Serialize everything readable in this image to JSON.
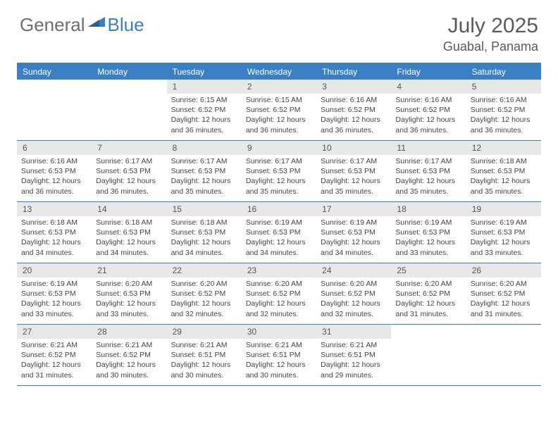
{
  "logo": {
    "part1": "General",
    "part2": "Blue"
  },
  "title": "July 2025",
  "location": "Guabal, Panama",
  "colors": {
    "accent": "#3a7fc4",
    "header_text": "#6e6e6e",
    "daynum_bg": "#e8e8e8",
    "body_text": "#444444"
  },
  "day_names": [
    "Sunday",
    "Monday",
    "Tuesday",
    "Wednesday",
    "Thursday",
    "Friday",
    "Saturday"
  ],
  "weeks": [
    [
      null,
      null,
      {
        "n": "1",
        "sr": "6:15 AM",
        "ss": "6:52 PM",
        "dl": "12 hours and 36 minutes."
      },
      {
        "n": "2",
        "sr": "6:15 AM",
        "ss": "6:52 PM",
        "dl": "12 hours and 36 minutes."
      },
      {
        "n": "3",
        "sr": "6:16 AM",
        "ss": "6:52 PM",
        "dl": "12 hours and 36 minutes."
      },
      {
        "n": "4",
        "sr": "6:16 AM",
        "ss": "6:52 PM",
        "dl": "12 hours and 36 minutes."
      },
      {
        "n": "5",
        "sr": "6:16 AM",
        "ss": "6:52 PM",
        "dl": "12 hours and 36 minutes."
      }
    ],
    [
      {
        "n": "6",
        "sr": "6:16 AM",
        "ss": "6:53 PM",
        "dl": "12 hours and 36 minutes."
      },
      {
        "n": "7",
        "sr": "6:17 AM",
        "ss": "6:53 PM",
        "dl": "12 hours and 36 minutes."
      },
      {
        "n": "8",
        "sr": "6:17 AM",
        "ss": "6:53 PM",
        "dl": "12 hours and 35 minutes."
      },
      {
        "n": "9",
        "sr": "6:17 AM",
        "ss": "6:53 PM",
        "dl": "12 hours and 35 minutes."
      },
      {
        "n": "10",
        "sr": "6:17 AM",
        "ss": "6:53 PM",
        "dl": "12 hours and 35 minutes."
      },
      {
        "n": "11",
        "sr": "6:17 AM",
        "ss": "6:53 PM",
        "dl": "12 hours and 35 minutes."
      },
      {
        "n": "12",
        "sr": "6:18 AM",
        "ss": "6:53 PM",
        "dl": "12 hours and 35 minutes."
      }
    ],
    [
      {
        "n": "13",
        "sr": "6:18 AM",
        "ss": "6:53 PM",
        "dl": "12 hours and 34 minutes."
      },
      {
        "n": "14",
        "sr": "6:18 AM",
        "ss": "6:53 PM",
        "dl": "12 hours and 34 minutes."
      },
      {
        "n": "15",
        "sr": "6:18 AM",
        "ss": "6:53 PM",
        "dl": "12 hours and 34 minutes."
      },
      {
        "n": "16",
        "sr": "6:19 AM",
        "ss": "6:53 PM",
        "dl": "12 hours and 34 minutes."
      },
      {
        "n": "17",
        "sr": "6:19 AM",
        "ss": "6:53 PM",
        "dl": "12 hours and 34 minutes."
      },
      {
        "n": "18",
        "sr": "6:19 AM",
        "ss": "6:53 PM",
        "dl": "12 hours and 33 minutes."
      },
      {
        "n": "19",
        "sr": "6:19 AM",
        "ss": "6:53 PM",
        "dl": "12 hours and 33 minutes."
      }
    ],
    [
      {
        "n": "20",
        "sr": "6:19 AM",
        "ss": "6:53 PM",
        "dl": "12 hours and 33 minutes."
      },
      {
        "n": "21",
        "sr": "6:20 AM",
        "ss": "6:53 PM",
        "dl": "12 hours and 33 minutes."
      },
      {
        "n": "22",
        "sr": "6:20 AM",
        "ss": "6:52 PM",
        "dl": "12 hours and 32 minutes."
      },
      {
        "n": "23",
        "sr": "6:20 AM",
        "ss": "6:52 PM",
        "dl": "12 hours and 32 minutes."
      },
      {
        "n": "24",
        "sr": "6:20 AM",
        "ss": "6:52 PM",
        "dl": "12 hours and 32 minutes."
      },
      {
        "n": "25",
        "sr": "6:20 AM",
        "ss": "6:52 PM",
        "dl": "12 hours and 31 minutes."
      },
      {
        "n": "26",
        "sr": "6:20 AM",
        "ss": "6:52 PM",
        "dl": "12 hours and 31 minutes."
      }
    ],
    [
      {
        "n": "27",
        "sr": "6:21 AM",
        "ss": "6:52 PM",
        "dl": "12 hours and 31 minutes."
      },
      {
        "n": "28",
        "sr": "6:21 AM",
        "ss": "6:52 PM",
        "dl": "12 hours and 30 minutes."
      },
      {
        "n": "29",
        "sr": "6:21 AM",
        "ss": "6:51 PM",
        "dl": "12 hours and 30 minutes."
      },
      {
        "n": "30",
        "sr": "6:21 AM",
        "ss": "6:51 PM",
        "dl": "12 hours and 30 minutes."
      },
      {
        "n": "31",
        "sr": "6:21 AM",
        "ss": "6:51 PM",
        "dl": "12 hours and 29 minutes."
      },
      null,
      null
    ]
  ],
  "labels": {
    "sunrise": "Sunrise:",
    "sunset": "Sunset:",
    "daylight": "Daylight:"
  }
}
